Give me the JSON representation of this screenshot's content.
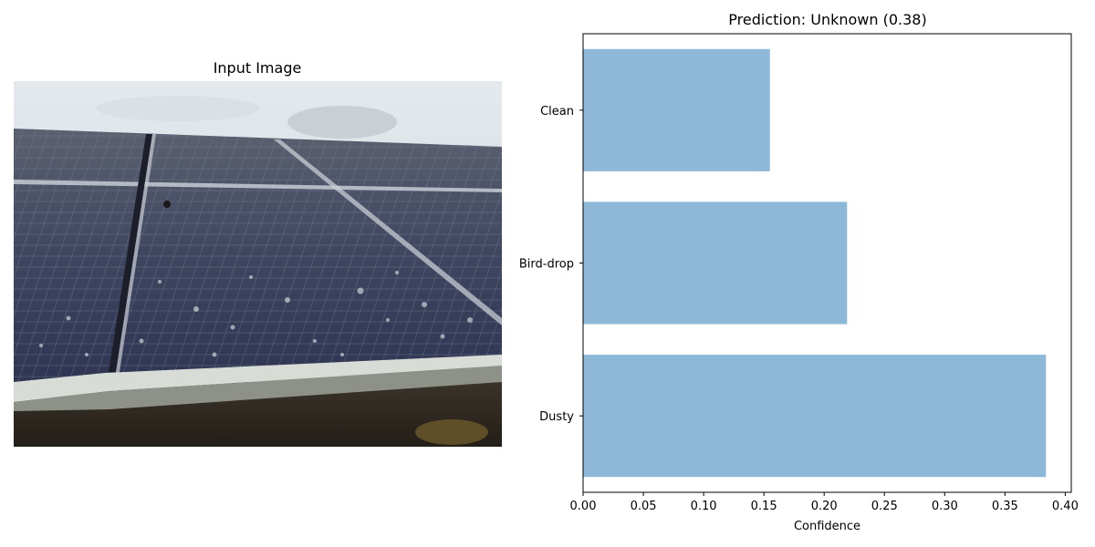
{
  "left_panel": {
    "title": "Input Image"
  },
  "chart_data": {
    "type": "bar",
    "orientation": "horizontal",
    "title": "Prediction: Unknown (0.38)",
    "xlabel": "Confidence",
    "ylabel": "",
    "categories": [
      "Dusty",
      "Bird-drop",
      "Clean"
    ],
    "values": [
      0.384,
      0.219,
      0.155
    ],
    "xlim": [
      0,
      0.405
    ],
    "xticks": [
      0.0,
      0.05,
      0.1,
      0.15,
      0.2,
      0.25,
      0.3,
      0.35,
      0.4
    ],
    "xtick_labels": [
      "0.00",
      "0.05",
      "0.10",
      "0.15",
      "0.20",
      "0.25",
      "0.30",
      "0.35",
      "0.40"
    ],
    "grid": false,
    "bar_color": "#8db8d8"
  }
}
